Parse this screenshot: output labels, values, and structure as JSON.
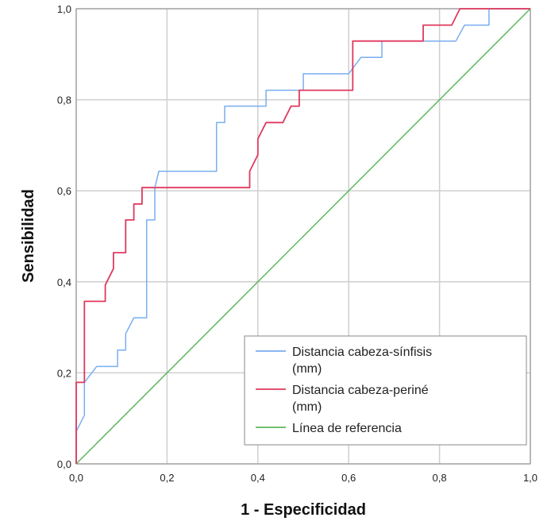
{
  "chart_data": {
    "type": "line",
    "xlabel": "1 - Especificidad",
    "ylabel": "Sensibilidad",
    "xlim": [
      0,
      1
    ],
    "ylim": [
      0,
      1
    ],
    "grid": true,
    "legend_position": "bottom-right",
    "x_ticks": [
      "0,0",
      "0,2",
      "0,4",
      "0,6",
      "0,8",
      "1,0"
    ],
    "y_ticks": [
      "0,0",
      "0,2",
      "0,4",
      "0,6",
      "0,8",
      "1,0"
    ],
    "series": [
      {
        "name": "Distancia cabeza-sínfisis (mm)",
        "color": "#79aef0",
        "points": [
          [
            0,
            0
          ],
          [
            0,
            0.071
          ],
          [
            0.018,
            0.107
          ],
          [
            0.018,
            0.179
          ],
          [
            0.045,
            0.214
          ],
          [
            0.091,
            0.214
          ],
          [
            0.091,
            0.25
          ],
          [
            0.109,
            0.25
          ],
          [
            0.109,
            0.286
          ],
          [
            0.127,
            0.321
          ],
          [
            0.155,
            0.321
          ],
          [
            0.155,
            0.536
          ],
          [
            0.173,
            0.536
          ],
          [
            0.173,
            0.607
          ],
          [
            0.182,
            0.643
          ],
          [
            0.309,
            0.643
          ],
          [
            0.309,
            0.75
          ],
          [
            0.327,
            0.75
          ],
          [
            0.327,
            0.786
          ],
          [
            0.418,
            0.786
          ],
          [
            0.418,
            0.821
          ],
          [
            0.5,
            0.821
          ],
          [
            0.5,
            0.857
          ],
          [
            0.527,
            0.857
          ],
          [
            0.6,
            0.857
          ],
          [
            0.627,
            0.893
          ],
          [
            0.673,
            0.893
          ],
          [
            0.673,
            0.929
          ],
          [
            0.8,
            0.929
          ],
          [
            0.836,
            0.929
          ],
          [
            0.855,
            0.964
          ],
          [
            0.909,
            0.964
          ],
          [
            0.909,
            1
          ],
          [
            1,
            1
          ]
        ]
      },
      {
        "name": "Distancia cabeza-periné (mm)",
        "color": "#e0385e",
        "points": [
          [
            0,
            0
          ],
          [
            0,
            0.179
          ],
          [
            0.018,
            0.179
          ],
          [
            0.018,
            0.357
          ],
          [
            0.064,
            0.357
          ],
          [
            0.064,
            0.393
          ],
          [
            0.082,
            0.429
          ],
          [
            0.082,
            0.464
          ],
          [
            0.109,
            0.464
          ],
          [
            0.109,
            0.536
          ],
          [
            0.127,
            0.536
          ],
          [
            0.127,
            0.571
          ],
          [
            0.145,
            0.571
          ],
          [
            0.145,
            0.607
          ],
          [
            0.382,
            0.607
          ],
          [
            0.382,
            0.643
          ],
          [
            0.4,
            0.679
          ],
          [
            0.4,
            0.714
          ],
          [
            0.418,
            0.75
          ],
          [
            0.455,
            0.75
          ],
          [
            0.473,
            0.786
          ],
          [
            0.491,
            0.786
          ],
          [
            0.491,
            0.821
          ],
          [
            0.609,
            0.821
          ],
          [
            0.609,
            0.929
          ],
          [
            0.764,
            0.929
          ],
          [
            0.764,
            0.964
          ],
          [
            0.827,
            0.964
          ],
          [
            0.845,
            1
          ],
          [
            1,
            1
          ]
        ]
      },
      {
        "name": "Línea de referencia",
        "color": "#5cb85c",
        "points": [
          [
            0,
            0
          ],
          [
            1,
            1
          ]
        ]
      }
    ]
  }
}
